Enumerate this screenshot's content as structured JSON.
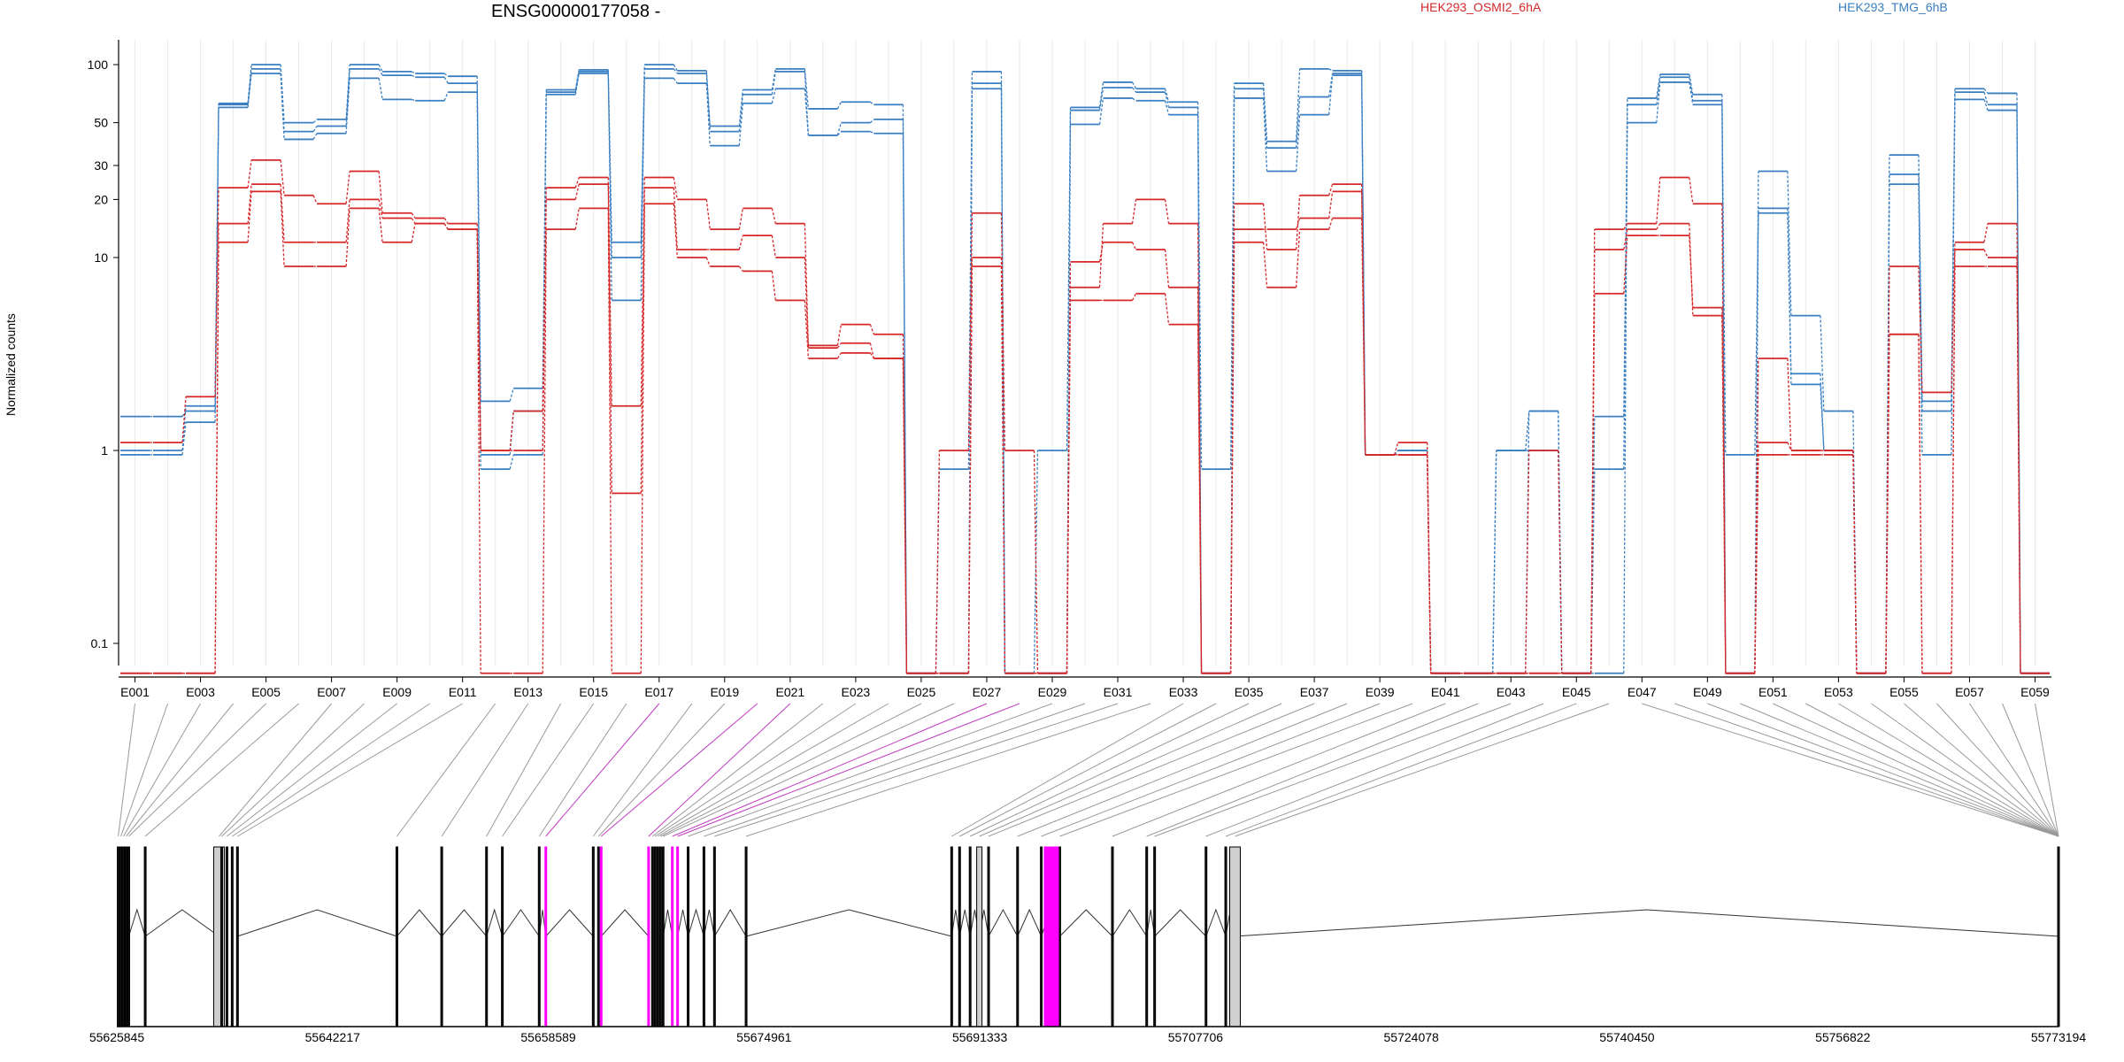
{
  "figure": {
    "title": "ENSG00000177058 -",
    "ylabel": "Normalized counts",
    "legend": [
      {
        "name": "HEK293_OSMI2_6hA",
        "color": "#d62728"
      },
      {
        "name": "HEK293_TMG_6hB",
        "color": "#3a7fc1"
      }
    ]
  },
  "chart_data": {
    "type": "line",
    "title": "ENSG00000177058 -",
    "ylabel": "Normalized counts",
    "yscale": "log",
    "ylim": [
      0.07,
      120
    ],
    "yticks": [
      0.1,
      1,
      10,
      20,
      30,
      50,
      100
    ],
    "ytick_labels": [
      "0.1",
      "1",
      "10",
      "20",
      "30",
      "50",
      "100"
    ],
    "grid": "vertical, light",
    "legend_position": "top",
    "x": [
      "E001",
      "E002",
      "E003",
      "E004",
      "E005",
      "E006",
      "E007",
      "E008",
      "E009",
      "E010",
      "E011",
      "E012",
      "E013",
      "E014",
      "E015",
      "E016",
      "E017",
      "E018",
      "E019",
      "E020",
      "E021",
      "E022",
      "E023",
      "E024",
      "E025",
      "E026",
      "E027",
      "E028",
      "E029",
      "E030",
      "E031",
      "E032",
      "E033",
      "E034",
      "E035",
      "E036",
      "E037",
      "E038",
      "E039",
      "E040",
      "E041",
      "E042",
      "E043",
      "E044",
      "E045",
      "E046",
      "E047",
      "E048",
      "E049",
      "E050",
      "E051",
      "E052",
      "E053",
      "E054",
      "E055",
      "E056",
      "E057",
      "E058",
      "E059"
    ],
    "xtick_labels": [
      "E001",
      "E003",
      "E005",
      "E007",
      "E009",
      "E011",
      "E013",
      "E015",
      "E017",
      "E019",
      "E021",
      "E023",
      "E025",
      "E027",
      "E029",
      "E031",
      "E033",
      "E035",
      "E037",
      "E039",
      "E041",
      "E043",
      "E045",
      "E047",
      "E049",
      "E051",
      "E053",
      "E055",
      "E057",
      "E059"
    ],
    "series": [
      {
        "group": "HEK293_TMG_6hB",
        "color": "#3a7fc1",
        "values": [
          1.5,
          1.5,
          1.6,
          63,
          100,
          50,
          52,
          100,
          92,
          90,
          87,
          1.8,
          2.1,
          74,
          94,
          12,
          100,
          93,
          48,
          74,
          95,
          59,
          64,
          62,
          0.07,
          0.8,
          92,
          0.07,
          1.0,
          60,
          81,
          75,
          64,
          0.8,
          80,
          40,
          95,
          93,
          0.95,
          1.0,
          0.07,
          0.07,
          1.0,
          1.6,
          0.07,
          0.8,
          67,
          89,
          70,
          0.07,
          28,
          5.0,
          1.6,
          0.07,
          34,
          1.8,
          75,
          71,
          0.07
        ]
      },
      {
        "group": "HEK293_TMG_6hB",
        "color": "#3a7fc1",
        "values": [
          1.0,
          1.0,
          1.7,
          62,
          95,
          45,
          48,
          95,
          88,
          86,
          80,
          0.95,
          1.6,
          72,
          92,
          6.0,
          95,
          90,
          45,
          70,
          92,
          43,
          50,
          52,
          0.07,
          0.07,
          80,
          0.07,
          0.07,
          58,
          76,
          72,
          60,
          0.07,
          75,
          37,
          68,
          90,
          0.95,
          1.0,
          0.07,
          0.07,
          1.0,
          1.0,
          0.07,
          0.07,
          62,
          86,
          65,
          0.07,
          18,
          2.5,
          1.0,
          0.07,
          27,
          1.6,
          72,
          62,
          0.07
        ]
      },
      {
        "group": "HEK293_TMG_6hB",
        "color": "#3a7fc1",
        "values": [
          0.95,
          0.95,
          1.4,
          60,
          90,
          41,
          44,
          85,
          66,
          65,
          72,
          0.8,
          0.95,
          70,
          90,
          10,
          85,
          80,
          38,
          63,
          75,
          43,
          45,
          44,
          0.07,
          0.07,
          75,
          0.07,
          0.07,
          49,
          67,
          65,
          55,
          0.07,
          67,
          28,
          55,
          88,
          0.95,
          0.95,
          0.07,
          0.07,
          0.07,
          1.6,
          0.07,
          1.5,
          50,
          81,
          62,
          0.95,
          17,
          2.2,
          1.0,
          0.07,
          24,
          0.95,
          66,
          58,
          0.07
        ]
      },
      {
        "group": "HEK293_OSMI2_6hA",
        "color": "#d62728",
        "values": [
          1.1,
          1.1,
          1.9,
          23,
          32,
          21,
          19,
          28,
          17,
          16,
          15,
          1.0,
          1.6,
          23,
          26,
          1.7,
          26,
          20,
          14,
          18,
          15,
          3.5,
          4.5,
          4.0,
          0.07,
          1.0,
          17,
          1.0,
          0.07,
          7.0,
          15,
          20,
          15,
          0.07,
          19,
          11,
          21,
          24,
          0.95,
          1.1,
          0.07,
          0.07,
          0.07,
          1.0,
          0.07,
          14,
          15,
          26,
          19,
          0.07,
          1.1,
          1.0,
          1.0,
          0.07,
          9.0,
          2.0,
          12,
          15,
          0.07
        ]
      },
      {
        "group": "HEK293_OSMI2_6hA",
        "color": "#d62728",
        "values": [
          0.07,
          0.07,
          0.07,
          15,
          24,
          12,
          12,
          20,
          16,
          15,
          14,
          1.0,
          1.0,
          20,
          24,
          0.6,
          23,
          11,
          11,
          13,
          10,
          3.4,
          3.6,
          3.0,
          0.07,
          0.07,
          10,
          0.07,
          0.07,
          9.5,
          12,
          11,
          7.0,
          0.07,
          14,
          14,
          16,
          22,
          0.95,
          0.95,
          0.07,
          0.07,
          0.07,
          0.07,
          0.07,
          11,
          14,
          15,
          5.0,
          0.07,
          3.0,
          1.0,
          1.0,
          0.07,
          4.0,
          0.07,
          11,
          10,
          0.07
        ]
      },
      {
        "group": "HEK293_OSMI2_6hA",
        "color": "#d62728",
        "values": [
          0.07,
          0.07,
          0.07,
          12,
          22,
          9,
          9,
          18,
          12,
          15,
          14,
          0.07,
          0.07,
          14,
          18,
          0.07,
          19,
          10,
          9,
          8.5,
          6,
          3.0,
          3.2,
          3.0,
          0.07,
          0.07,
          9,
          0.07,
          0.07,
          6,
          6,
          6.5,
          4.5,
          0.07,
          12,
          7.0,
          14,
          16,
          0.95,
          0.95,
          0.07,
          0.07,
          0.07,
          0.07,
          0.07,
          6.5,
          13,
          13,
          5.5,
          0.07,
          0.95,
          0.95,
          0.95,
          0.07,
          4.0,
          0.07,
          9,
          9,
          0.07
        ]
      }
    ],
    "genomic_axis": {
      "ticks": [
        55625845,
        55642217,
        55658589,
        55674961,
        55691333,
        55707706,
        55724078,
        55740450,
        55756822,
        55773194
      ],
      "tick_labels": [
        "55625845",
        "55642217",
        "55658589",
        "55674961",
        "55691333",
        "55707706",
        "55724078",
        "55740450",
        "55756822",
        "55773194"
      ],
      "exon_positions": [
        55625950,
        55626150,
        55626350,
        55626550,
        55626750,
        55628000,
        55633600,
        55633800,
        55634200,
        55634600,
        55635000,
        55647100,
        55650500,
        55653900,
        55655100,
        55657900,
        55658400,
        55662000,
        55662400,
        55662600,
        55666200,
        55666500,
        55666700,
        55666900,
        55667100,
        55667300,
        55668000,
        55668400,
        55669200,
        55670400,
        55671200,
        55673600,
        55689200,
        55689800,
        55690600,
        55691300,
        55692000,
        55694200,
        55696000,
        55697400,
        55701400,
        55704000,
        55704600,
        55708500,
        55710000,
        55710700,
        55773194
      ],
      "highlighted_exons": [
        "E017",
        "E020",
        "E021",
        "E027",
        "E028"
      ],
      "highlight_color": "#ff00ff"
    }
  }
}
